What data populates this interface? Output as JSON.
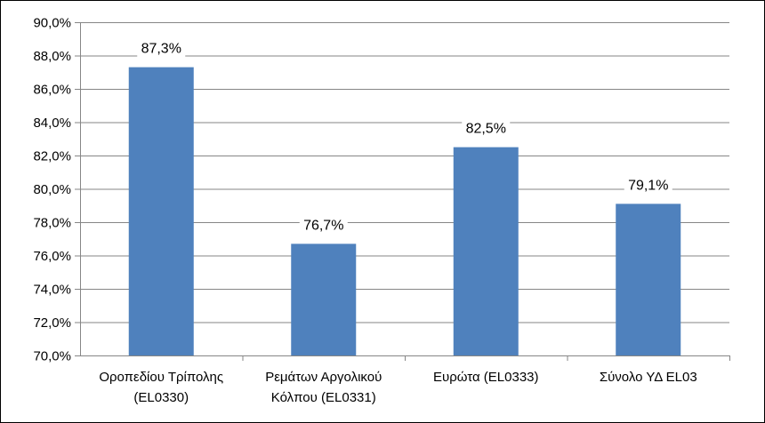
{
  "chart_data": {
    "type": "bar",
    "categories": [
      [
        "Οροπεδίου Τρίπολης",
        "(EL0330)"
      ],
      [
        "Ρεμάτων Αργολικού",
        "Κόλπου (EL0331)"
      ],
      [
        "Ευρώτα (EL0333)"
      ],
      [
        "Σύνολο ΥΔ EL03"
      ]
    ],
    "values": [
      87.3,
      76.7,
      82.5,
      79.1
    ],
    "data_labels": [
      "87,3%",
      "76,7%",
      "82,5%",
      "79,1%"
    ],
    "ylim": [
      70,
      90
    ],
    "yticks": [
      {
        "value": 70,
        "label": "70,0%"
      },
      {
        "value": 72,
        "label": "72,0%"
      },
      {
        "value": 74,
        "label": "74,0%"
      },
      {
        "value": 76,
        "label": "76,0%"
      },
      {
        "value": 78,
        "label": "78,0%"
      },
      {
        "value": 80,
        "label": "80,0%"
      },
      {
        "value": 82,
        "label": "82,0%"
      },
      {
        "value": 84,
        "label": "84,0%"
      },
      {
        "value": 86,
        "label": "86,0%"
      },
      {
        "value": 88,
        "label": "88,0%"
      },
      {
        "value": 90,
        "label": "90,0%"
      }
    ],
    "grid": "horizontal",
    "legend": "none",
    "bar_color": "#4F81BD",
    "grid_color": "#868686"
  }
}
